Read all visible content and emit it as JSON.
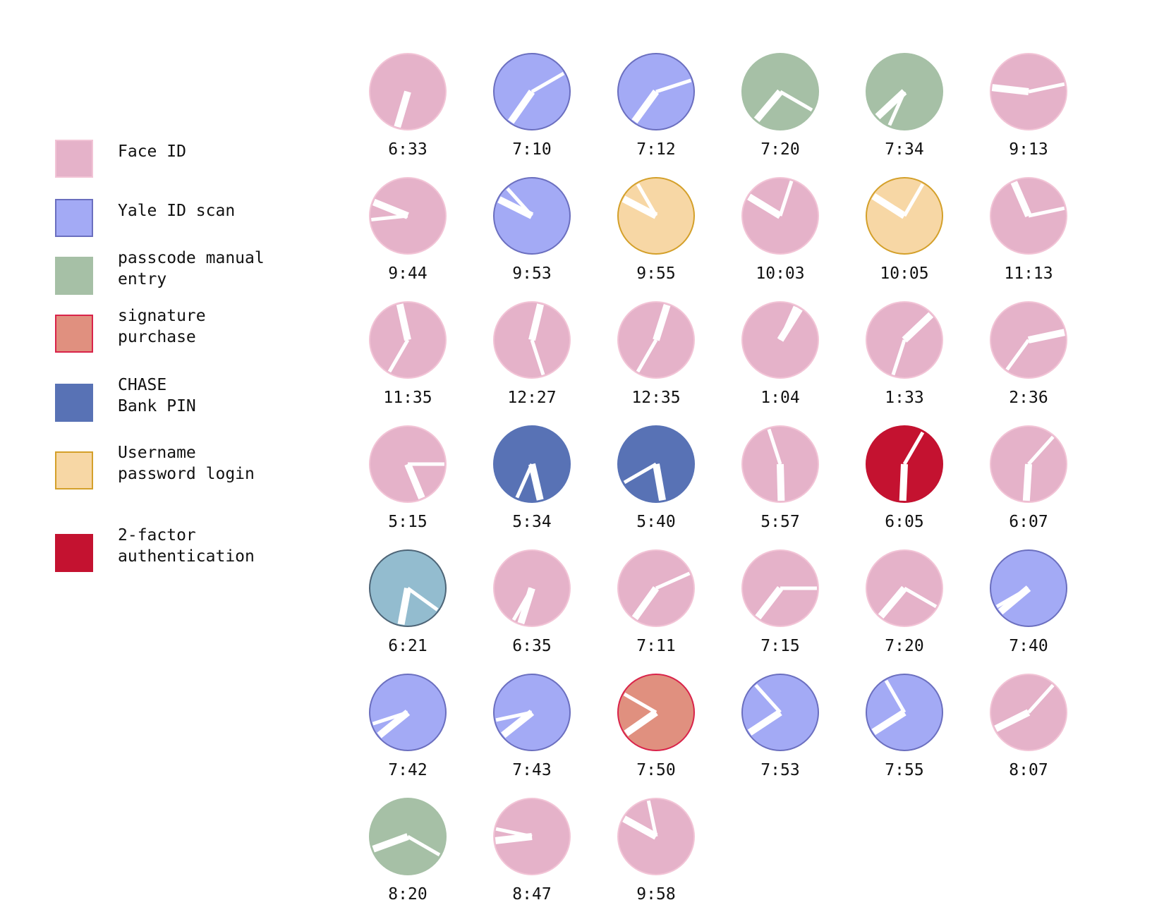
{
  "legend": {
    "items": [
      {
        "key": "face_id",
        "label": "Face ID",
        "fill": "#e5b2c9",
        "stroke": "#f2c4d6"
      },
      {
        "key": "yale_id",
        "label": "Yale ID scan",
        "fill": "#a3aaf5",
        "stroke": "#6b6fbf"
      },
      {
        "key": "passcode",
        "label": "passcode manual\nentry",
        "fill": "#a6c0a6",
        "stroke": "#a6c0a6"
      },
      {
        "key": "signature",
        "label": "signature\npurchase",
        "fill": "#e0907f",
        "stroke": "#d9234a"
      },
      {
        "key": "chase",
        "label": "CHASE\nBank PIN",
        "fill": "#5872b5",
        "stroke": "#5872b5"
      },
      {
        "key": "username",
        "label": "Username\npassword login",
        "fill": "#f7d7a5",
        "stroke": "#d4a02a"
      },
      {
        "key": "twofactor",
        "label": "2-factor\nauthentication",
        "fill": "#c41230",
        "stroke": "#c41230"
      }
    ]
  },
  "chart_data": {
    "type": "clock-glyph-grid",
    "colors": {
      "unlisted_light_blue": {
        "fill": "#93bccf",
        "stroke": "#4d6476"
      }
    },
    "entries": [
      {
        "time": "6:33",
        "method": "face_id"
      },
      {
        "time": "7:10",
        "method": "yale_id"
      },
      {
        "time": "7:12",
        "method": "yale_id"
      },
      {
        "time": "7:20",
        "method": "passcode"
      },
      {
        "time": "7:34",
        "method": "passcode"
      },
      {
        "time": "9:13",
        "method": "face_id"
      },
      {
        "time": "9:44",
        "method": "face_id"
      },
      {
        "time": "9:53",
        "method": "yale_id"
      },
      {
        "time": "9:55",
        "method": "username"
      },
      {
        "time": "10:03",
        "method": "face_id"
      },
      {
        "time": "10:05",
        "method": "username"
      },
      {
        "time": "11:13",
        "method": "face_id"
      },
      {
        "time": "11:35",
        "method": "face_id"
      },
      {
        "time": "12:27",
        "method": "face_id"
      },
      {
        "time": "12:35",
        "method": "face_id"
      },
      {
        "time": "1:04",
        "method": "face_id"
      },
      {
        "time": "1:33",
        "method": "face_id"
      },
      {
        "time": "2:36",
        "method": "face_id"
      },
      {
        "time": "5:15",
        "method": "face_id"
      },
      {
        "time": "5:34",
        "method": "chase"
      },
      {
        "time": "5:40",
        "method": "chase"
      },
      {
        "time": "5:57",
        "method": "face_id"
      },
      {
        "time": "6:05",
        "method": "twofactor"
      },
      {
        "time": "6:07",
        "method": "face_id"
      },
      {
        "time": "6:21",
        "method": "unlisted_light_blue"
      },
      {
        "time": "6:35",
        "method": "face_id"
      },
      {
        "time": "7:11",
        "method": "face_id"
      },
      {
        "time": "7:15",
        "method": "face_id"
      },
      {
        "time": "7:20",
        "method": "face_id"
      },
      {
        "time": "7:40",
        "method": "yale_id"
      },
      {
        "time": "7:42",
        "method": "yale_id"
      },
      {
        "time": "7:43",
        "method": "yale_id"
      },
      {
        "time": "7:50",
        "method": "signature"
      },
      {
        "time": "7:53",
        "method": "yale_id"
      },
      {
        "time": "7:55",
        "method": "yale_id"
      },
      {
        "time": "8:07",
        "method": "face_id"
      },
      {
        "time": "8:20",
        "method": "passcode"
      },
      {
        "time": "8:47",
        "method": "face_id"
      },
      {
        "time": "9:58",
        "method": "face_id"
      }
    ]
  }
}
